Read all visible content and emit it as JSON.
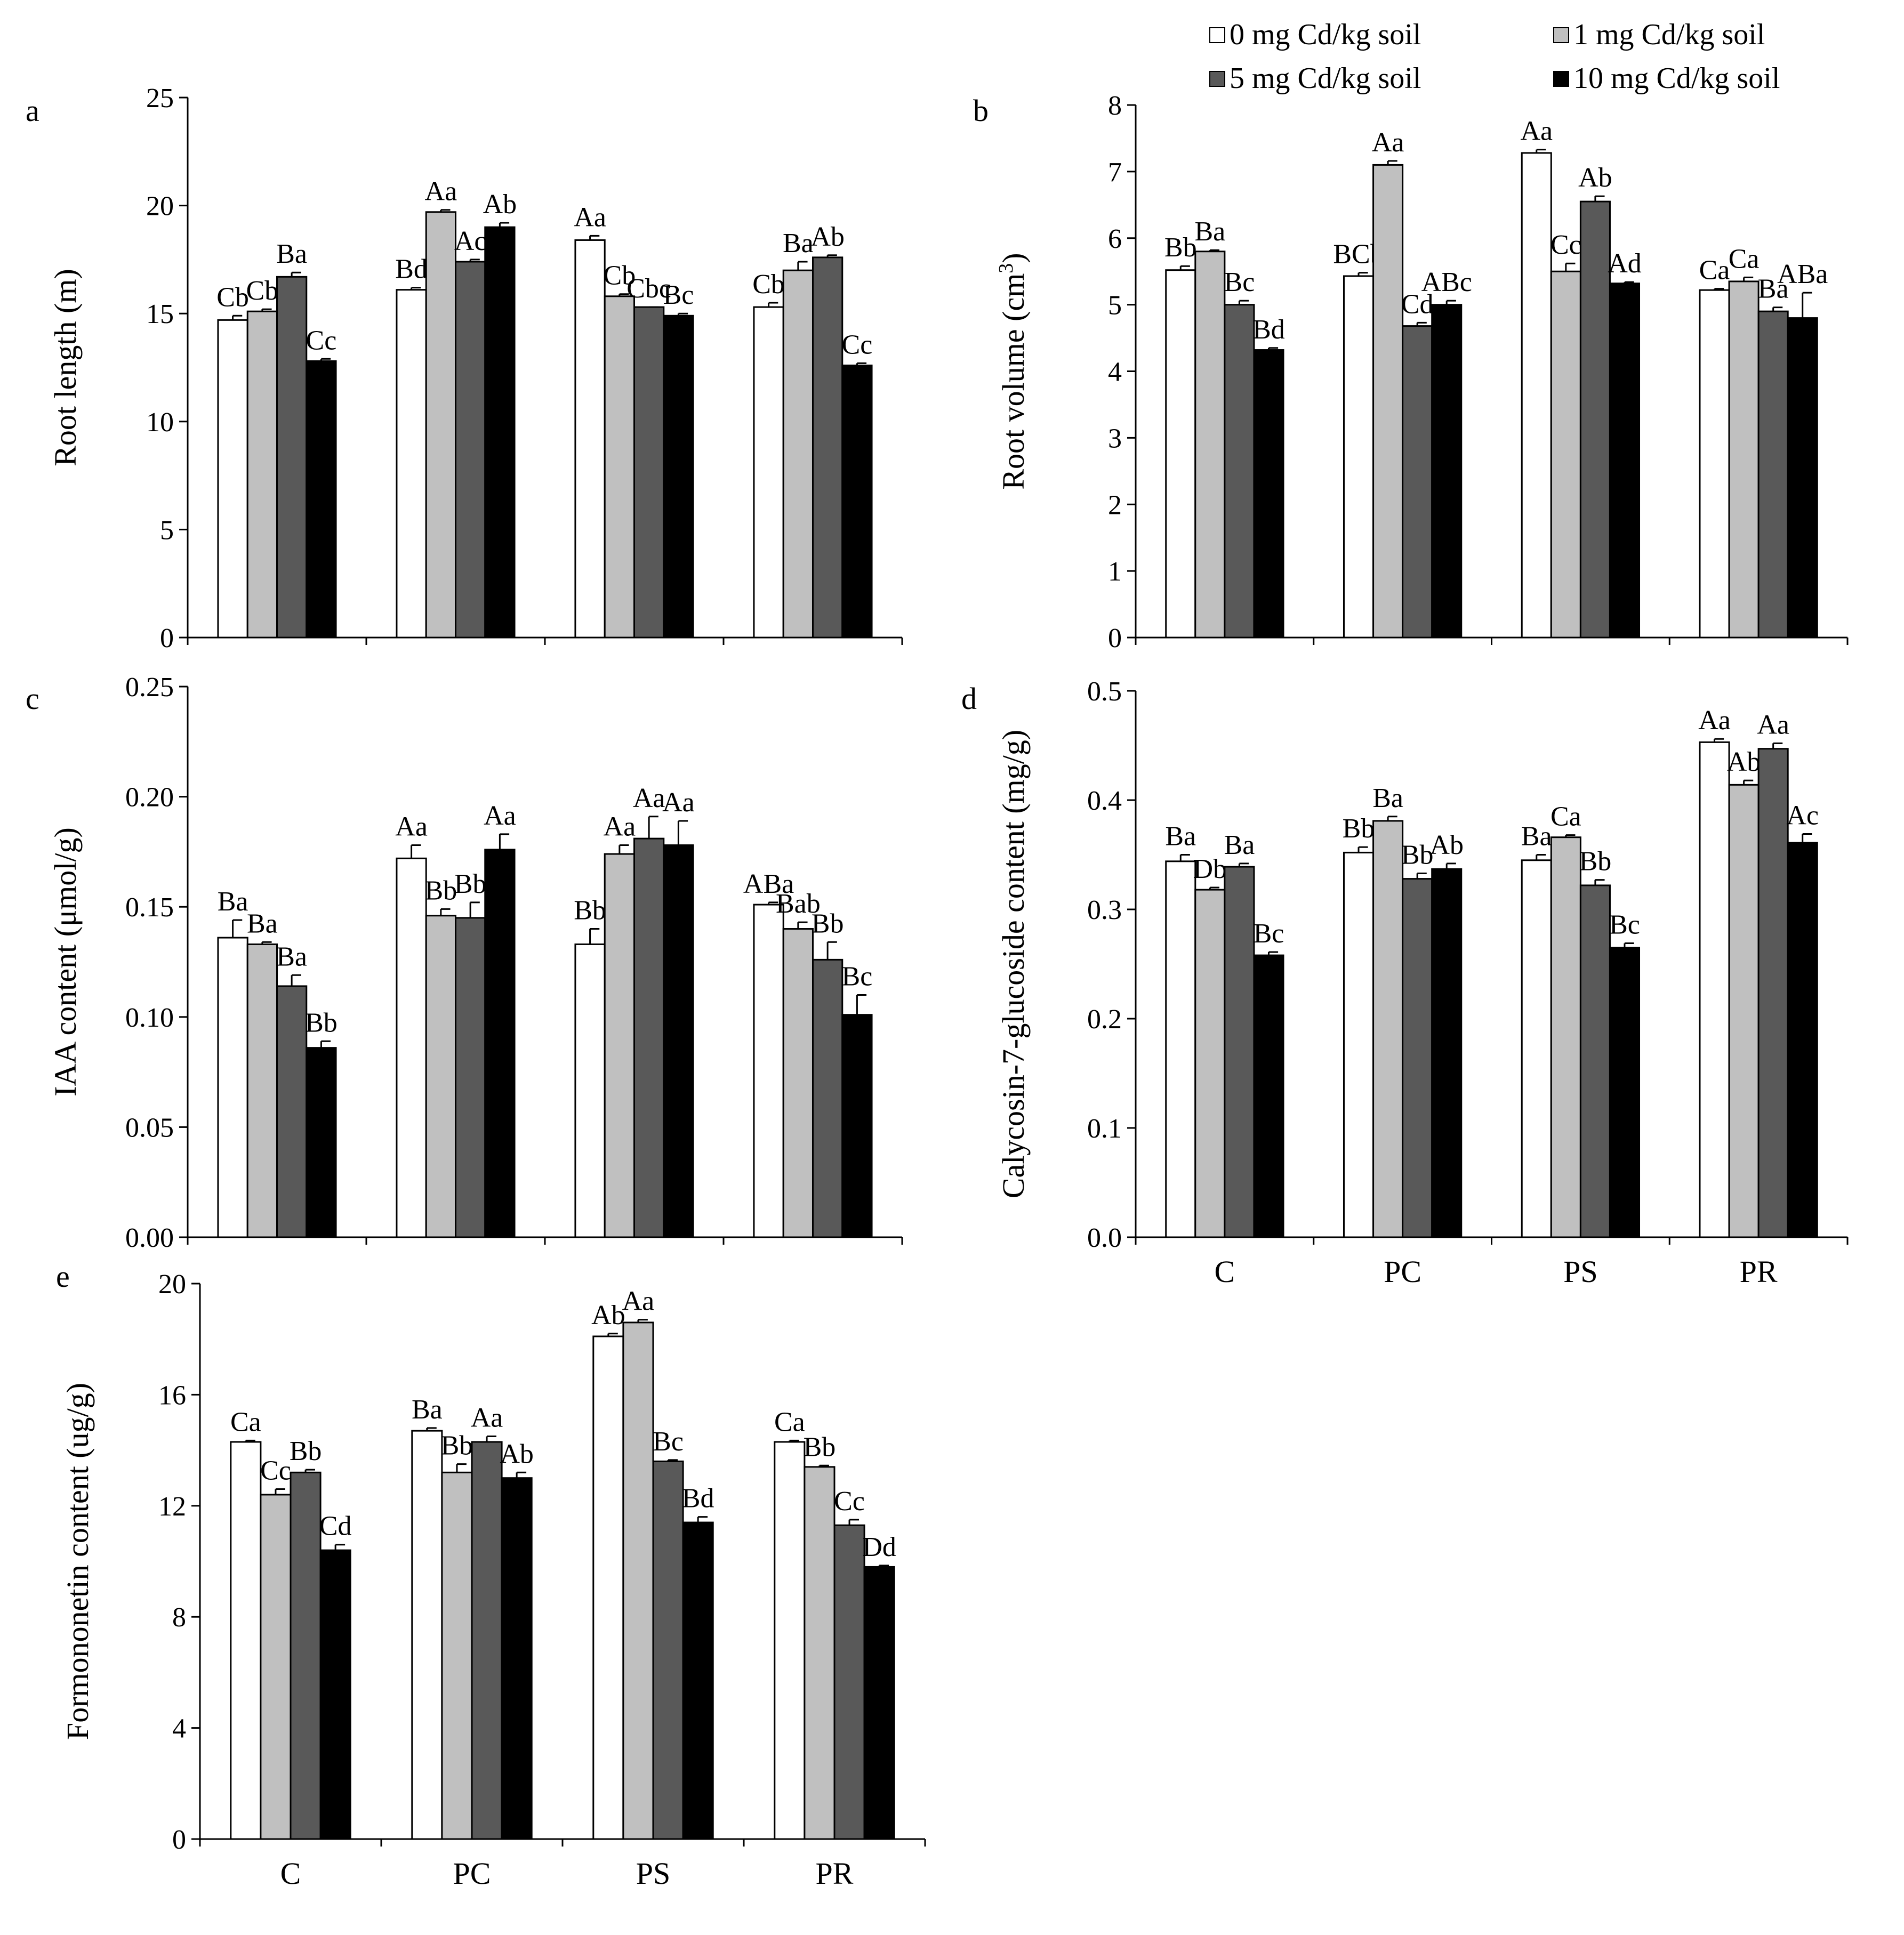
{
  "legend": {
    "items": [
      {
        "label": "0 mg Cd/kg soil",
        "color": "#ffffff"
      },
      {
        "label": "1 mg Cd/kg soil",
        "color": "#c0c0c0"
      },
      {
        "label": "5 mg Cd/kg soil",
        "color": "#595959"
      },
      {
        "label": "10 mg Cd/kg soil",
        "color": "#000000"
      }
    ]
  },
  "chart_data": [
    {
      "panel": "a",
      "type": "bar",
      "ylabel": "Root length (m)",
      "ylim": [
        0,
        25
      ],
      "yticks": [
        0,
        5,
        10,
        15,
        20,
        25
      ],
      "tick_decimals": 0,
      "categories": [
        "C",
        "PC",
        "PS",
        "PR"
      ],
      "show_xticklabels": false,
      "series": [
        {
          "name": "0 mg Cd/kg soil",
          "values": [
            14.7,
            16.1,
            18.4,
            15.3
          ],
          "errors": [
            0.2,
            0.1,
            0.2,
            0.2
          ],
          "labels": [
            "Cb",
            "Bd",
            "Aa",
            "Cb"
          ]
        },
        {
          "name": "1 mg Cd/kg soil",
          "values": [
            15.1,
            19.7,
            15.8,
            17.0
          ],
          "errors": [
            0.1,
            0.1,
            0.1,
            0.4
          ],
          "labels": [
            "Cb",
            "Aa",
            "Cb",
            "Ba"
          ]
        },
        {
          "name": "5 mg Cd/kg soil",
          "values": [
            16.7,
            17.4,
            15.3,
            17.6
          ],
          "errors": [
            0.2,
            0.1,
            0.0,
            0.1
          ],
          "labels": [
            "Ba",
            "Ac",
            "Cbc",
            "Ab"
          ]
        },
        {
          "name": "10 mg Cd/kg soil",
          "values": [
            12.8,
            19.0,
            14.9,
            12.6
          ],
          "errors": [
            0.1,
            0.2,
            0.1,
            0.1
          ],
          "labels": [
            "Cc",
            "Ab",
            "Bc",
            "Cc"
          ]
        }
      ]
    },
    {
      "panel": "b",
      "type": "bar",
      "ylabel": "Root volume (cm",
      "ylabel_sup": "3",
      "ylabel_end": ")",
      "ylim": [
        0,
        8
      ],
      "yticks": [
        0,
        1,
        2,
        3,
        4,
        5,
        6,
        7,
        8
      ],
      "tick_decimals": 0,
      "categories": [
        "C",
        "PC",
        "PS",
        "PR"
      ],
      "show_xticklabels": false,
      "series": [
        {
          "name": "0 mg Cd/kg soil",
          "values": [
            5.52,
            5.43,
            7.28,
            5.22
          ],
          "errors": [
            0.06,
            0.05,
            0.05,
            0.02
          ],
          "labels": [
            "Bb",
            "BCb",
            "Aa",
            "Ca"
          ]
        },
        {
          "name": "1 mg Cd/kg soil",
          "values": [
            5.8,
            7.1,
            5.5,
            5.35
          ],
          "errors": [
            0.02,
            0.06,
            0.12,
            0.06
          ],
          "labels": [
            "Ba",
            "Aa",
            "Cc",
            "Ca"
          ]
        },
        {
          "name": "5 mg Cd/kg soil",
          "values": [
            5.0,
            4.68,
            6.55,
            4.9
          ],
          "errors": [
            0.06,
            0.05,
            0.08,
            0.06
          ],
          "labels": [
            "Bc",
            "Cd",
            "Ab",
            "Ba"
          ]
        },
        {
          "name": "10 mg Cd/kg soil",
          "values": [
            4.32,
            5.0,
            5.32,
            4.8
          ],
          "errors": [
            0.03,
            0.06,
            0.02,
            0.38
          ],
          "labels": [
            "Bd",
            "ABc",
            "Ad",
            "ABa"
          ]
        }
      ]
    },
    {
      "panel": "c",
      "type": "bar",
      "ylabel": "IAA content (μmol/g)",
      "ylim": [
        0,
        0.25
      ],
      "yticks": [
        0,
        0.05,
        0.1,
        0.15,
        0.2,
        0.25
      ],
      "tick_decimals": 2,
      "categories": [
        "C",
        "PC",
        "PS",
        "PR"
      ],
      "show_xticklabels": false,
      "series": [
        {
          "name": "0 mg Cd/kg soil",
          "values": [
            0.136,
            0.172,
            0.133,
            0.151
          ],
          "errors": [
            0.008,
            0.006,
            0.007,
            0.001
          ],
          "labels": [
            "Ba",
            "Aa",
            "Bb",
            "ABa"
          ]
        },
        {
          "name": "1 mg Cd/kg soil",
          "values": [
            0.133,
            0.146,
            0.174,
            0.14
          ],
          "errors": [
            0.001,
            0.003,
            0.004,
            0.003
          ],
          "labels": [
            "Ba",
            "Bb",
            "Aa",
            "Bab"
          ]
        },
        {
          "name": "5 mg Cd/kg soil",
          "values": [
            0.114,
            0.145,
            0.181,
            0.126
          ],
          "errors": [
            0.005,
            0.007,
            0.01,
            0.008
          ],
          "labels": [
            "Ba",
            "Bb",
            "Aa",
            "Bb"
          ]
        },
        {
          "name": "10 mg Cd/kg soil",
          "values": [
            0.086,
            0.176,
            0.178,
            0.101
          ],
          "errors": [
            0.003,
            0.007,
            0.011,
            0.009
          ],
          "labels": [
            "Bb",
            "Aa",
            "Aa",
            "Bc"
          ]
        }
      ]
    },
    {
      "panel": "d",
      "type": "bar",
      "ylabel": "Calycosin-7-glucoside content (mg/g)",
      "ylim": [
        0,
        0.5
      ],
      "yticks": [
        0,
        0.1,
        0.2,
        0.3,
        0.4,
        0.5
      ],
      "tick_decimals": 1,
      "categories": [
        "C",
        "PC",
        "PS",
        "PR"
      ],
      "show_xticklabels": true,
      "series": [
        {
          "name": "0 mg Cd/kg soil",
          "values": [
            0.344,
            0.352,
            0.345,
            0.453
          ],
          "errors": [
            0.006,
            0.005,
            0.005,
            0.003
          ],
          "labels": [
            "Ba",
            "Bb",
            "Ba",
            "Aa"
          ]
        },
        {
          "name": "1 mg Cd/kg soil",
          "values": [
            0.318,
            0.381,
            0.366,
            0.414
          ],
          "errors": [
            0.002,
            0.004,
            0.002,
            0.004
          ],
          "labels": [
            "Db",
            "Ba",
            "Ca",
            "Ab"
          ]
        },
        {
          "name": "5 mg Cd/kg soil",
          "values": [
            0.339,
            0.328,
            0.322,
            0.447
          ],
          "errors": [
            0.003,
            0.005,
            0.005,
            0.005
          ],
          "labels": [
            "Ba",
            "Bb",
            "Bb",
            "Aa"
          ]
        },
        {
          "name": "10 mg Cd/kg soil",
          "values": [
            0.258,
            0.337,
            0.265,
            0.361
          ],
          "errors": [
            0.003,
            0.005,
            0.004,
            0.008
          ],
          "labels": [
            "Bc",
            "Ab",
            "Bc",
            "Ac"
          ]
        }
      ]
    },
    {
      "panel": "e",
      "type": "bar",
      "ylabel": "Formononetin content (ug/g)",
      "ylim": [
        0,
        20
      ],
      "yticks": [
        0,
        4,
        8,
        12,
        16,
        20
      ],
      "tick_decimals": 0,
      "categories": [
        "C",
        "PC",
        "PS",
        "PR"
      ],
      "show_xticklabels": true,
      "series": [
        {
          "name": "0 mg Cd/kg soil",
          "values": [
            14.3,
            14.7,
            18.1,
            14.3
          ],
          "errors": [
            0.05,
            0.1,
            0.1,
            0.05
          ],
          "labels": [
            "Ca",
            "Ba",
            "Ab",
            "Ca"
          ]
        },
        {
          "name": "1 mg Cd/kg soil",
          "values": [
            12.4,
            13.2,
            18.6,
            13.4
          ],
          "errors": [
            0.2,
            0.3,
            0.1,
            0.05
          ],
          "labels": [
            "Cc",
            "Bb",
            "Aa",
            "Bb"
          ]
        },
        {
          "name": "5 mg Cd/kg soil",
          "values": [
            13.2,
            14.3,
            13.6,
            11.3
          ],
          "errors": [
            0.1,
            0.2,
            0.05,
            0.2
          ],
          "labels": [
            "Bb",
            "Aa",
            "Bc",
            "Cc"
          ]
        },
        {
          "name": "10 mg Cd/kg soil",
          "values": [
            10.4,
            13.0,
            11.4,
            9.8
          ],
          "errors": [
            0.2,
            0.2,
            0.2,
            0.05
          ],
          "labels": [
            "Cd",
            "Ab",
            "Bd",
            "Dd"
          ]
        }
      ]
    }
  ]
}
